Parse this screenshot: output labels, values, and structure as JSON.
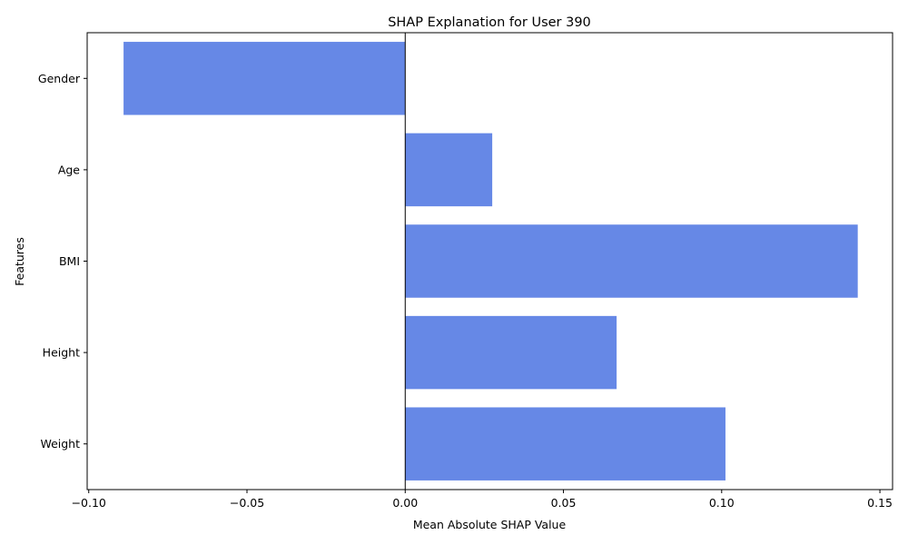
{
  "chart_data": {
    "type": "bar",
    "orientation": "horizontal",
    "title": "SHAP Explanation for User 390",
    "xlabel": "Mean Absolute SHAP Value",
    "ylabel": "Features",
    "categories": [
      "Gender",
      "Age",
      "BMI",
      "Height",
      "Weight"
    ],
    "values": [
      -0.089,
      0.0275,
      0.143,
      0.0668,
      0.1012
    ],
    "xlim": [
      -0.1005,
      0.154
    ],
    "xticks": [
      -0.1,
      -0.05,
      0.0,
      0.05,
      0.1,
      0.15
    ],
    "xtick_labels": [
      "−0.10",
      "−0.05",
      "0.00",
      "0.05",
      "0.10",
      "0.15"
    ],
    "bar_color": "#6688e6",
    "zero_line": true,
    "grid": false
  }
}
